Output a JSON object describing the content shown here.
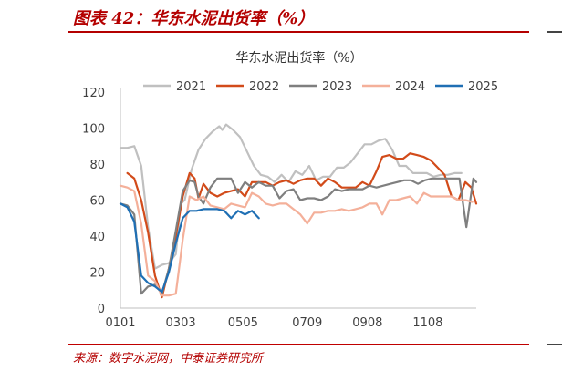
{
  "figure": {
    "title": "图表 42：华东水泥出货率（%）",
    "source": "来源：数字水泥网，中泰证券研究所"
  },
  "colors": {
    "2021": "#c0c0c0",
    "2022": "#d24b1a",
    "2023": "#7f7f7f",
    "2024": "#f4b09a",
    "2025": "#1f6fb4",
    "accent": "#b40000"
  },
  "chart_data": {
    "type": "line",
    "title": "华东水泥出货率（%）",
    "xlabel": "",
    "ylabel": "",
    "ylim": [
      0,
      120
    ],
    "yticks": [
      0,
      20,
      40,
      60,
      80,
      100,
      120
    ],
    "xlim": [
      1,
      361
    ],
    "xticks": [
      {
        "label": "0101",
        "day": 1
      },
      {
        "label": "0303",
        "day": 62
      },
      {
        "label": "0505",
        "day": 125
      },
      {
        "label": "0709",
        "day": 190
      },
      {
        "label": "0908",
        "day": 251
      },
      {
        "label": "1108",
        "day": 312
      }
    ],
    "legend_position": "top",
    "grid": false,
    "series": [
      {
        "name": "2021",
        "points": [
          [
            1,
            89
          ],
          [
            8,
            89
          ],
          [
            15,
            90
          ],
          [
            22,
            79
          ],
          [
            29,
            45
          ],
          [
            36,
            22
          ],
          [
            43,
            24
          ],
          [
            50,
            25
          ],
          [
            57,
            30
          ],
          [
            62,
            58
          ],
          [
            66,
            60
          ],
          [
            73,
            77
          ],
          [
            80,
            88
          ],
          [
            87,
            94
          ],
          [
            94,
            98
          ],
          [
            101,
            101
          ],
          [
            104,
            99
          ],
          [
            108,
            102
          ],
          [
            115,
            99
          ],
          [
            122,
            95
          ],
          [
            129,
            87
          ],
          [
            136,
            79
          ],
          [
            143,
            74
          ],
          [
            150,
            73
          ],
          [
            157,
            70
          ],
          [
            164,
            74
          ],
          [
            171,
            70
          ],
          [
            178,
            76
          ],
          [
            185,
            74
          ],
          [
            192,
            79
          ],
          [
            199,
            71
          ],
          [
            206,
            73
          ],
          [
            213,
            73
          ],
          [
            220,
            78
          ],
          [
            227,
            78
          ],
          [
            234,
            81
          ],
          [
            241,
            86
          ],
          [
            248,
            91
          ],
          [
            255,
            91
          ],
          [
            262,
            93
          ],
          [
            269,
            94
          ],
          [
            276,
            88
          ],
          [
            283,
            79
          ],
          [
            290,
            79
          ],
          [
            297,
            75
          ],
          [
            304,
            75
          ],
          [
            311,
            75
          ],
          [
            318,
            73
          ],
          [
            325,
            74
          ],
          [
            332,
            74
          ],
          [
            339,
            75
          ],
          [
            346,
            75
          ]
        ]
      },
      {
        "name": "2022",
        "points": [
          [
            8,
            75
          ],
          [
            15,
            72
          ],
          [
            22,
            60
          ],
          [
            29,
            42
          ],
          [
            36,
            18
          ],
          [
            43,
            6
          ],
          [
            50,
            22
          ],
          [
            57,
            40
          ],
          [
            64,
            62
          ],
          [
            71,
            75
          ],
          [
            76,
            72
          ],
          [
            80,
            61
          ],
          [
            85,
            69
          ],
          [
            92,
            64
          ],
          [
            99,
            62
          ],
          [
            106,
            64
          ],
          [
            113,
            65
          ],
          [
            120,
            66
          ],
          [
            127,
            62
          ],
          [
            134,
            70
          ],
          [
            141,
            70
          ],
          [
            148,
            70
          ],
          [
            155,
            68
          ],
          [
            162,
            70
          ],
          [
            169,
            71
          ],
          [
            176,
            69
          ],
          [
            183,
            71
          ],
          [
            190,
            72
          ],
          [
            197,
            72
          ],
          [
            204,
            68
          ],
          [
            211,
            72
          ],
          [
            218,
            70
          ],
          [
            225,
            67
          ],
          [
            232,
            67
          ],
          [
            239,
            67
          ],
          [
            246,
            70
          ],
          [
            253,
            68
          ],
          [
            260,
            76
          ],
          [
            266,
            84
          ],
          [
            273,
            85
          ],
          [
            280,
            83
          ],
          [
            287,
            83
          ],
          [
            294,
            86
          ],
          [
            301,
            85
          ],
          [
            308,
            84
          ],
          [
            315,
            82
          ],
          [
            322,
            78
          ],
          [
            329,
            74
          ],
          [
            336,
            62
          ],
          [
            343,
            60
          ],
          [
            350,
            70
          ],
          [
            356,
            67
          ],
          [
            361,
            58
          ]
        ]
      },
      {
        "name": "2023",
        "points": [
          [
            1,
            58
          ],
          [
            8,
            57
          ],
          [
            15,
            52
          ],
          [
            22,
            8
          ],
          [
            29,
            12
          ],
          [
            36,
            13
          ],
          [
            43,
            8
          ],
          [
            50,
            22
          ],
          [
            57,
            43
          ],
          [
            64,
            65
          ],
          [
            71,
            71
          ],
          [
            76,
            70
          ],
          [
            80,
            62
          ],
          [
            85,
            58
          ],
          [
            92,
            67
          ],
          [
            99,
            72
          ],
          [
            106,
            72
          ],
          [
            113,
            72
          ],
          [
            120,
            64
          ],
          [
            127,
            70
          ],
          [
            134,
            67
          ],
          [
            141,
            70
          ],
          [
            148,
            68
          ],
          [
            155,
            68
          ],
          [
            162,
            61
          ],
          [
            169,
            65
          ],
          [
            176,
            66
          ],
          [
            183,
            60
          ],
          [
            190,
            61
          ],
          [
            197,
            61
          ],
          [
            204,
            60
          ],
          [
            211,
            62
          ],
          [
            218,
            66
          ],
          [
            225,
            65
          ],
          [
            232,
            66
          ],
          [
            239,
            66
          ],
          [
            246,
            66
          ],
          [
            253,
            68
          ],
          [
            260,
            67
          ],
          [
            267,
            68
          ],
          [
            274,
            69
          ],
          [
            281,
            70
          ],
          [
            288,
            71
          ],
          [
            295,
            71
          ],
          [
            302,
            69
          ],
          [
            309,
            71
          ],
          [
            316,
            72
          ],
          [
            323,
            72
          ],
          [
            330,
            72
          ],
          [
            337,
            72
          ],
          [
            344,
            72
          ],
          [
            351,
            45
          ],
          [
            358,
            72
          ],
          [
            361,
            70
          ]
        ]
      },
      {
        "name": "2024",
        "points": [
          [
            1,
            68
          ],
          [
            8,
            67
          ],
          [
            15,
            65
          ],
          [
            22,
            47
          ],
          [
            29,
            18
          ],
          [
            36,
            15
          ],
          [
            43,
            7
          ],
          [
            50,
            7
          ],
          [
            57,
            8
          ],
          [
            64,
            38
          ],
          [
            71,
            62
          ],
          [
            78,
            60
          ],
          [
            85,
            62
          ],
          [
            92,
            57
          ],
          [
            99,
            56
          ],
          [
            106,
            55
          ],
          [
            113,
            58
          ],
          [
            120,
            57
          ],
          [
            127,
            56
          ],
          [
            134,
            64
          ],
          [
            141,
            62
          ],
          [
            148,
            58
          ],
          [
            155,
            57
          ],
          [
            162,
            58
          ],
          [
            169,
            58
          ],
          [
            176,
            55
          ],
          [
            183,
            52
          ],
          [
            190,
            47
          ],
          [
            197,
            53
          ],
          [
            204,
            53
          ],
          [
            211,
            54
          ],
          [
            218,
            54
          ],
          [
            225,
            55
          ],
          [
            232,
            54
          ],
          [
            239,
            55
          ],
          [
            246,
            56
          ],
          [
            253,
            58
          ],
          [
            260,
            58
          ],
          [
            266,
            52
          ],
          [
            273,
            60
          ],
          [
            280,
            60
          ],
          [
            287,
            61
          ],
          [
            294,
            62
          ],
          [
            301,
            58
          ],
          [
            308,
            64
          ],
          [
            315,
            62
          ],
          [
            322,
            62
          ],
          [
            329,
            62
          ],
          [
            336,
            62
          ],
          [
            343,
            60
          ],
          [
            350,
            60
          ],
          [
            357,
            59
          ]
        ]
      },
      {
        "name": "2025",
        "points": [
          [
            1,
            58
          ],
          [
            8,
            56
          ],
          [
            15,
            48
          ],
          [
            22,
            18
          ],
          [
            29,
            14
          ],
          [
            36,
            12
          ],
          [
            43,
            9
          ],
          [
            50,
            20
          ],
          [
            57,
            36
          ],
          [
            64,
            50
          ],
          [
            71,
            54
          ],
          [
            78,
            54
          ],
          [
            85,
            55
          ],
          [
            92,
            55
          ],
          [
            99,
            55
          ],
          [
            106,
            54
          ],
          [
            113,
            50
          ],
          [
            120,
            54
          ],
          [
            127,
            52
          ],
          [
            134,
            54
          ],
          [
            141,
            50
          ]
        ]
      }
    ]
  }
}
